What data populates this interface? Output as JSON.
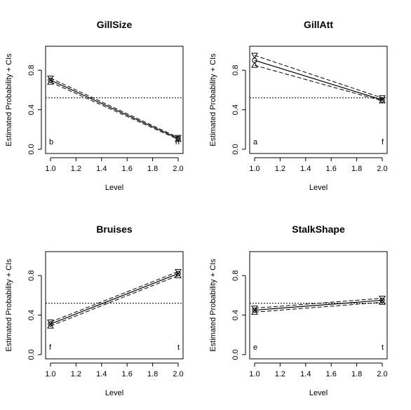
{
  "chart_data": [
    {
      "type": "line",
      "title": "GillSize",
      "xlabel": "Level",
      "ylabel": "Estimated Probability + CIs",
      "xlim": [
        1.0,
        2.0
      ],
      "ylim": [
        0.0,
        1.0
      ],
      "xticks": [
        "1.0",
        "1.2",
        "1.4",
        "1.6",
        "1.8",
        "2.0"
      ],
      "yticks": [
        "0.0",
        "0.4",
        "0.8"
      ],
      "reference_line": 0.52,
      "x": [
        1,
        2
      ],
      "estimate": [
        0.7,
        0.11
      ],
      "lower": [
        0.68,
        0.1
      ],
      "upper": [
        0.72,
        0.12
      ],
      "level_labels": [
        "b",
        "n"
      ]
    },
    {
      "type": "line",
      "title": "GillAtt",
      "xlabel": "Level",
      "ylabel": "Estimated Probability + CIs",
      "xlim": [
        1.0,
        2.0
      ],
      "ylim": [
        0.0,
        1.0
      ],
      "xticks": [
        "1.0",
        "1.2",
        "1.4",
        "1.6",
        "1.8",
        "2.0"
      ],
      "yticks": [
        "0.0",
        "0.4",
        "0.8"
      ],
      "reference_line": 0.52,
      "x": [
        1,
        2
      ],
      "estimate": [
        0.9,
        0.5
      ],
      "lower": [
        0.85,
        0.49
      ],
      "upper": [
        0.95,
        0.52
      ],
      "level_labels": [
        "a",
        "f"
      ]
    },
    {
      "type": "line",
      "title": "Bruises",
      "xlabel": "Level",
      "ylabel": "Estimated Probability + CIs",
      "xlim": [
        1.0,
        2.0
      ],
      "ylim": [
        0.0,
        1.0
      ],
      "xticks": [
        "1.0",
        "1.2",
        "1.4",
        "1.6",
        "1.8",
        "2.0"
      ],
      "yticks": [
        "0.0",
        "0.4",
        "0.8"
      ],
      "reference_line": 0.52,
      "x": [
        1,
        2
      ],
      "estimate": [
        0.31,
        0.82
      ],
      "lower": [
        0.29,
        0.8
      ],
      "upper": [
        0.33,
        0.84
      ],
      "level_labels": [
        "f",
        "t"
      ]
    },
    {
      "type": "line",
      "title": "StalkShape",
      "xlabel": "Level",
      "ylabel": "Estimated Probability + CIs",
      "xlim": [
        1.0,
        2.0
      ],
      "ylim": [
        0.0,
        1.0
      ],
      "xticks": [
        "1.0",
        "1.2",
        "1.4",
        "1.6",
        "1.8",
        "2.0"
      ],
      "yticks": [
        "0.0",
        "0.4",
        "0.8"
      ],
      "reference_line": 0.52,
      "x": [
        1,
        2
      ],
      "estimate": [
        0.45,
        0.55
      ],
      "lower": [
        0.43,
        0.53
      ],
      "upper": [
        0.47,
        0.57
      ],
      "level_labels": [
        "e",
        "t"
      ]
    }
  ]
}
